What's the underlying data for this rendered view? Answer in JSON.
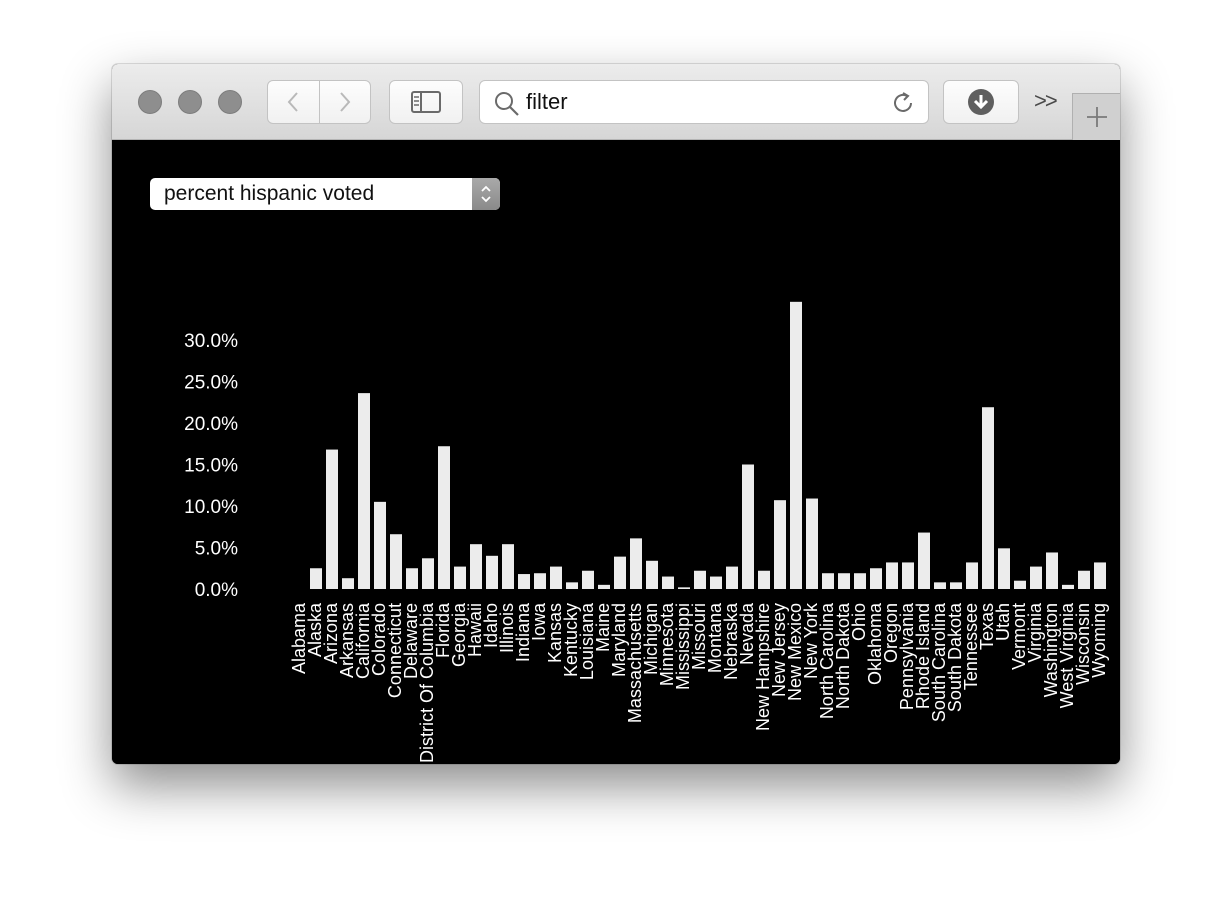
{
  "toolbar": {
    "address_placeholder": "filter",
    "overflow_label": ">>",
    "icons": {
      "back": "chevron-left-icon",
      "forward": "chevron-right-icon",
      "sidebar": "sidebar-icon",
      "search": "search-icon",
      "reload": "reload-icon",
      "downloads": "download-icon",
      "new_tab": "plus-icon"
    }
  },
  "selector": {
    "selected": "percent hispanic voted"
  },
  "colors": {
    "background": "#000000",
    "bar": "#ececec",
    "text": "#ffffff"
  },
  "chart_data": {
    "type": "bar",
    "title": "",
    "xlabel": "",
    "ylabel": "",
    "ylim": [
      0,
      35
    ],
    "yticks": [
      "0.0%",
      "5.0%",
      "10.0%",
      "15.0%",
      "20.0%",
      "25.0%",
      "30.0%"
    ],
    "categories": [
      "Alabama",
      "Alaska",
      "Arizona",
      "Arkansas",
      "California",
      "Colorado",
      "Connecticut",
      "Delaware",
      "District Of Columbia",
      "Florida",
      "Georgia",
      "Hawaii",
      "Idaho",
      "Illinois",
      "Indiana",
      "Iowa",
      "Kansas",
      "Kentucky",
      "Louisiana",
      "Maine",
      "Maryland",
      "Massachusetts",
      "Michigan",
      "Minnesota",
      "Mississippi",
      "Missouri",
      "Montana",
      "Nebraska",
      "Nevada",
      "New Hampshire",
      "New Jersey",
      "New Mexico",
      "New York",
      "North Carolina",
      "North Dakota",
      "Ohio",
      "Oklahoma",
      "Oregon",
      "Pennsylvania",
      "Rhode Island",
      "South Carolina",
      "South Dakota",
      "Tennessee",
      "Texas",
      "Utah",
      "Vermont",
      "Virginia",
      "Washington",
      "West Virginia",
      "Wisconsin",
      "Wyoming"
    ],
    "values": [
      0,
      2.5,
      16.8,
      1.3,
      23.6,
      10.5,
      6.6,
      2.5,
      3.7,
      17.2,
      2.7,
      5.4,
      4.0,
      5.4,
      1.8,
      1.9,
      2.7,
      0.8,
      2.2,
      0.5,
      3.9,
      6.1,
      3.4,
      1.5,
      0.2,
      2.2,
      1.5,
      2.7,
      15.0,
      2.2,
      10.7,
      34.6,
      10.9,
      1.9,
      1.9,
      1.9,
      2.5,
      3.2,
      3.2,
      6.8,
      0.8,
      0.8,
      3.2,
      21.9,
      4.9,
      1.0,
      2.7,
      4.4,
      0.5,
      2.2,
      3.2
    ]
  }
}
